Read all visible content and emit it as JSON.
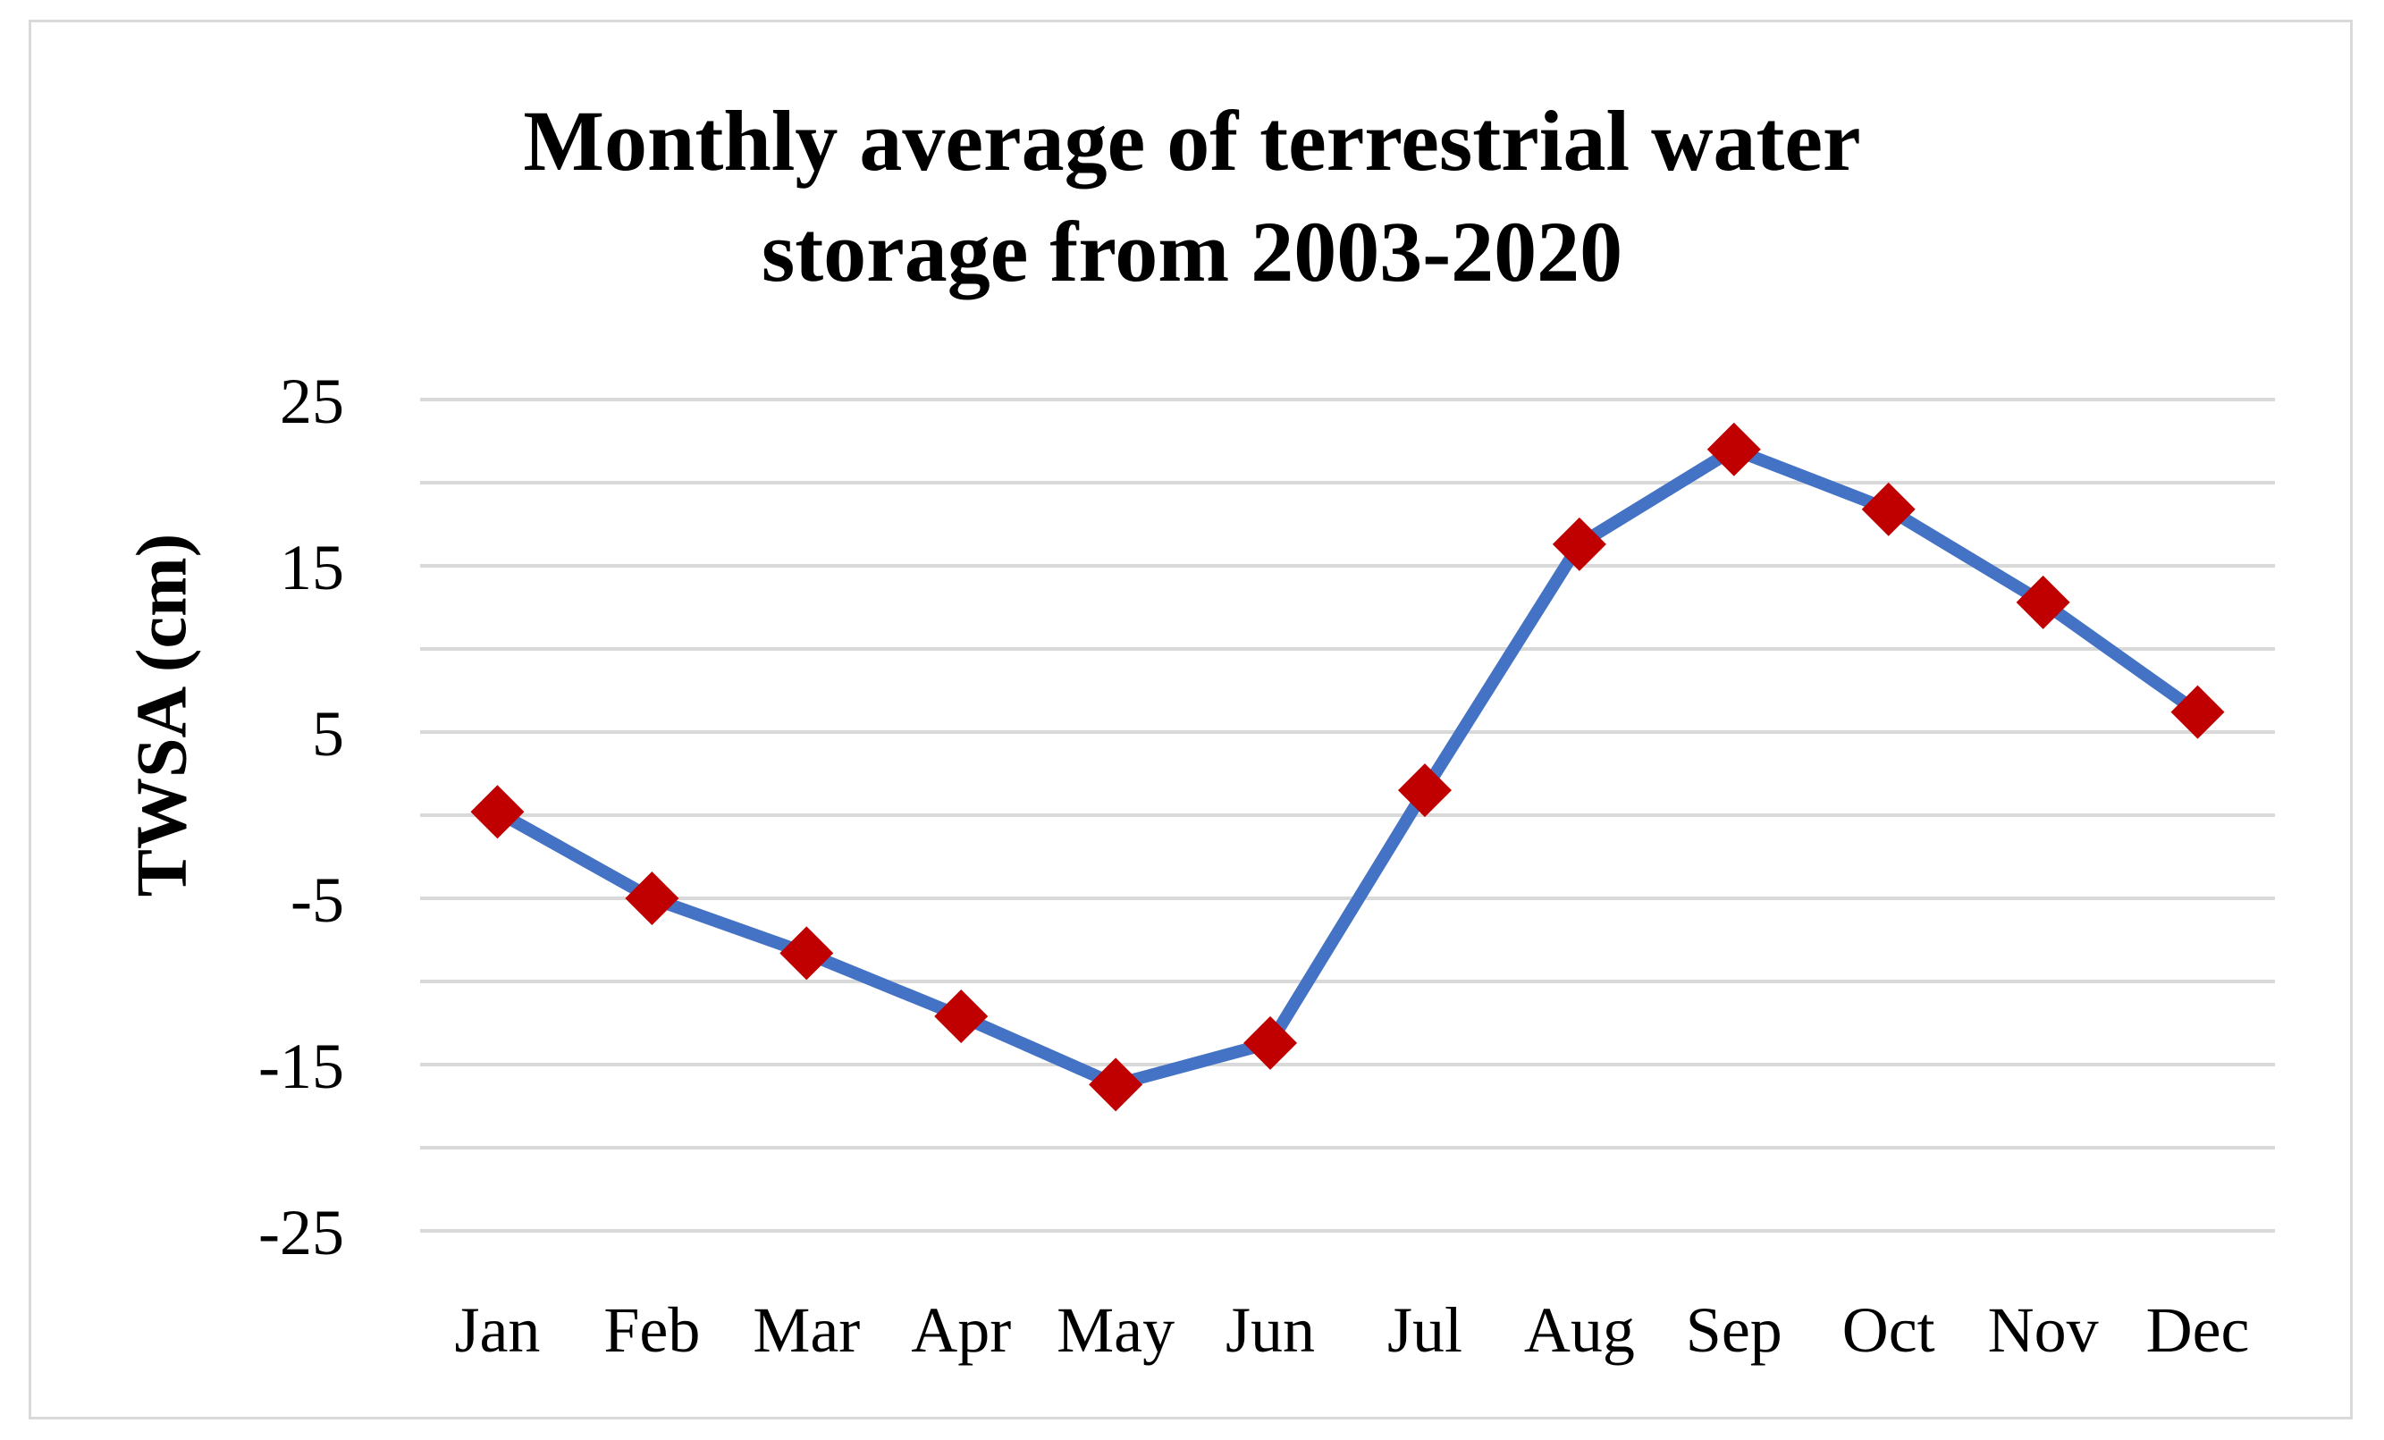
{
  "chart_data": {
    "type": "line",
    "title_lines": [
      "Monthly average of terrestrial water",
      "storage from 2003-2020"
    ],
    "ylabel": "TWSA (cm)",
    "xlabel": "",
    "categories": [
      "Jan",
      "Feb",
      "Mar",
      "Apr",
      "May",
      "Jun",
      "Jul",
      "Aug",
      "Sep",
      "Oct",
      "Nov",
      "Dec"
    ],
    "series": [
      {
        "name": "TWSA",
        "values": [
          0.2,
          -5.0,
          -8.3,
          -12.1,
          -16.2,
          -13.7,
          1.5,
          16.3,
          22.0,
          18.4,
          12.8,
          6.2
        ],
        "line_color": "#4472c4",
        "marker_color": "#c00000",
        "marker": "diamond"
      }
    ],
    "ylim": [
      -25,
      25
    ],
    "yticks": [
      25,
      15,
      5,
      -5,
      -15,
      -25
    ],
    "gridlines": [
      25,
      20,
      15,
      10,
      5,
      0,
      -5,
      -10,
      -15,
      -20,
      -25
    ],
    "grid": true,
    "legend": "none"
  }
}
